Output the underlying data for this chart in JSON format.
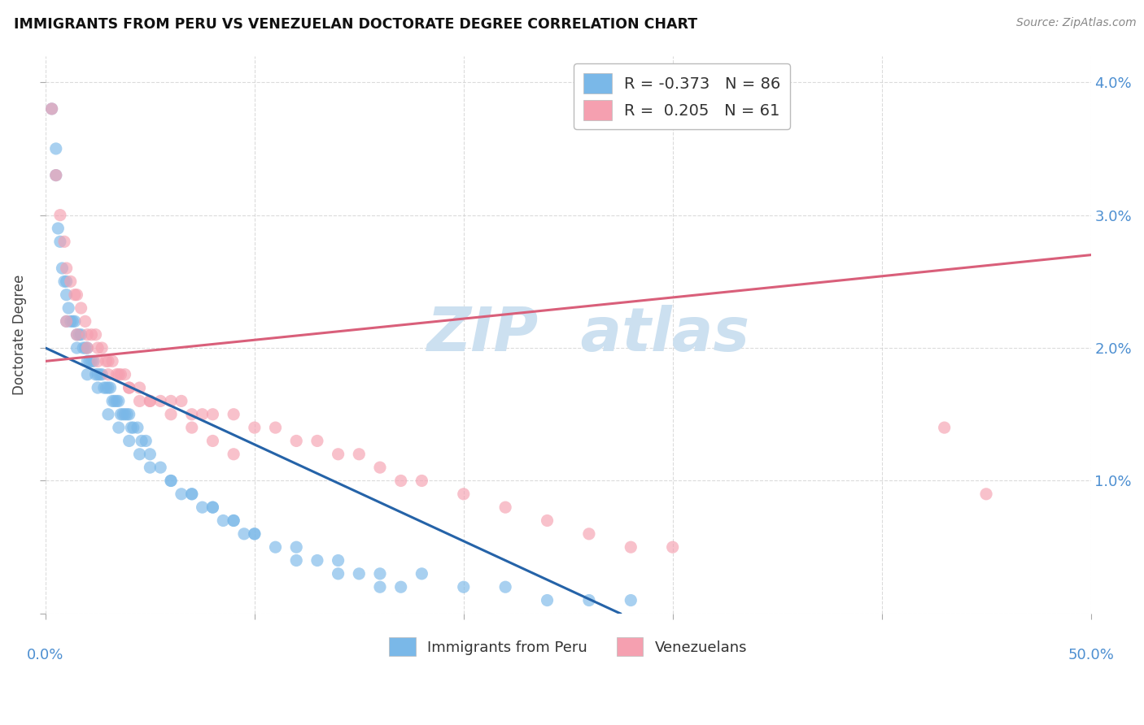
{
  "title": "IMMIGRANTS FROM PERU VS VENEZUELAN DOCTORATE DEGREE CORRELATION CHART",
  "source": "Source: ZipAtlas.com",
  "ylabel": "Doctorate Degree",
  "x_range": [
    0.0,
    0.5
  ],
  "y_range": [
    0.0,
    0.042
  ],
  "y_ticks": [
    0.0,
    0.01,
    0.02,
    0.03,
    0.04
  ],
  "y_tick_labels_right": [
    "",
    "1.0%",
    "2.0%",
    "3.0%",
    "4.0%"
  ],
  "legend_R_blue": "-0.373",
  "legend_N_blue": "86",
  "legend_R_pink": "0.205",
  "legend_N_pink": "61",
  "blue_color": "#7ab8e8",
  "pink_color": "#f5a0b0",
  "blue_line_color": "#2563a8",
  "pink_line_color": "#d95f7a",
  "watermark_color": "#cce0f0",
  "grid_color": "#cccccc",
  "title_color": "#111111",
  "source_color": "#888888",
  "tick_label_color": "#4d8fd1",
  "ylabel_color": "#444444",
  "blue_line_x0": 0.0,
  "blue_line_y0": 0.02,
  "blue_line_x1": 0.275,
  "blue_line_y1": 0.0,
  "pink_line_x0": 0.0,
  "pink_line_y0": 0.019,
  "pink_line_x1": 0.5,
  "pink_line_y1": 0.027,
  "blue_pts_x": [
    0.003,
    0.005,
    0.006,
    0.007,
    0.008,
    0.009,
    0.01,
    0.01,
    0.011,
    0.012,
    0.013,
    0.014,
    0.015,
    0.016,
    0.017,
    0.018,
    0.019,
    0.02,
    0.02,
    0.021,
    0.022,
    0.023,
    0.024,
    0.025,
    0.026,
    0.027,
    0.028,
    0.029,
    0.03,
    0.031,
    0.032,
    0.033,
    0.034,
    0.035,
    0.036,
    0.037,
    0.038,
    0.039,
    0.04,
    0.041,
    0.042,
    0.044,
    0.046,
    0.048,
    0.05,
    0.055,
    0.06,
    0.065,
    0.07,
    0.075,
    0.08,
    0.085,
    0.09,
    0.095,
    0.1,
    0.11,
    0.12,
    0.13,
    0.14,
    0.15,
    0.16,
    0.17,
    0.005,
    0.01,
    0.015,
    0.02,
    0.025,
    0.03,
    0.035,
    0.04,
    0.045,
    0.05,
    0.06,
    0.07,
    0.08,
    0.09,
    0.1,
    0.12,
    0.14,
    0.16,
    0.18,
    0.2,
    0.22,
    0.24,
    0.26,
    0.28
  ],
  "blue_pts_y": [
    0.038,
    0.033,
    0.029,
    0.028,
    0.026,
    0.025,
    0.025,
    0.024,
    0.023,
    0.022,
    0.022,
    0.022,
    0.021,
    0.021,
    0.021,
    0.02,
    0.02,
    0.02,
    0.019,
    0.019,
    0.019,
    0.019,
    0.018,
    0.018,
    0.018,
    0.018,
    0.017,
    0.017,
    0.017,
    0.017,
    0.016,
    0.016,
    0.016,
    0.016,
    0.015,
    0.015,
    0.015,
    0.015,
    0.015,
    0.014,
    0.014,
    0.014,
    0.013,
    0.013,
    0.012,
    0.011,
    0.01,
    0.009,
    0.009,
    0.008,
    0.008,
    0.007,
    0.007,
    0.006,
    0.006,
    0.005,
    0.004,
    0.004,
    0.003,
    0.003,
    0.002,
    0.002,
    0.035,
    0.022,
    0.02,
    0.018,
    0.017,
    0.015,
    0.014,
    0.013,
    0.012,
    0.011,
    0.01,
    0.009,
    0.008,
    0.007,
    0.006,
    0.005,
    0.004,
    0.003,
    0.003,
    0.002,
    0.002,
    0.001,
    0.001,
    0.001
  ],
  "pink_pts_x": [
    0.003,
    0.005,
    0.007,
    0.009,
    0.01,
    0.012,
    0.014,
    0.015,
    0.017,
    0.019,
    0.02,
    0.022,
    0.024,
    0.025,
    0.027,
    0.029,
    0.03,
    0.032,
    0.034,
    0.036,
    0.038,
    0.04,
    0.045,
    0.05,
    0.055,
    0.06,
    0.065,
    0.07,
    0.075,
    0.08,
    0.09,
    0.1,
    0.11,
    0.12,
    0.13,
    0.14,
    0.15,
    0.16,
    0.17,
    0.18,
    0.2,
    0.22,
    0.24,
    0.26,
    0.28,
    0.3,
    0.01,
    0.015,
    0.02,
    0.025,
    0.03,
    0.035,
    0.04,
    0.045,
    0.05,
    0.06,
    0.07,
    0.08,
    0.09,
    0.43,
    0.45
  ],
  "pink_pts_y": [
    0.038,
    0.033,
    0.03,
    0.028,
    0.026,
    0.025,
    0.024,
    0.024,
    0.023,
    0.022,
    0.021,
    0.021,
    0.021,
    0.02,
    0.02,
    0.019,
    0.019,
    0.019,
    0.018,
    0.018,
    0.018,
    0.017,
    0.017,
    0.016,
    0.016,
    0.016,
    0.016,
    0.015,
    0.015,
    0.015,
    0.015,
    0.014,
    0.014,
    0.013,
    0.013,
    0.012,
    0.012,
    0.011,
    0.01,
    0.01,
    0.009,
    0.008,
    0.007,
    0.006,
    0.005,
    0.005,
    0.022,
    0.021,
    0.02,
    0.019,
    0.018,
    0.018,
    0.017,
    0.016,
    0.016,
    0.015,
    0.014,
    0.013,
    0.012,
    0.014,
    0.009
  ]
}
